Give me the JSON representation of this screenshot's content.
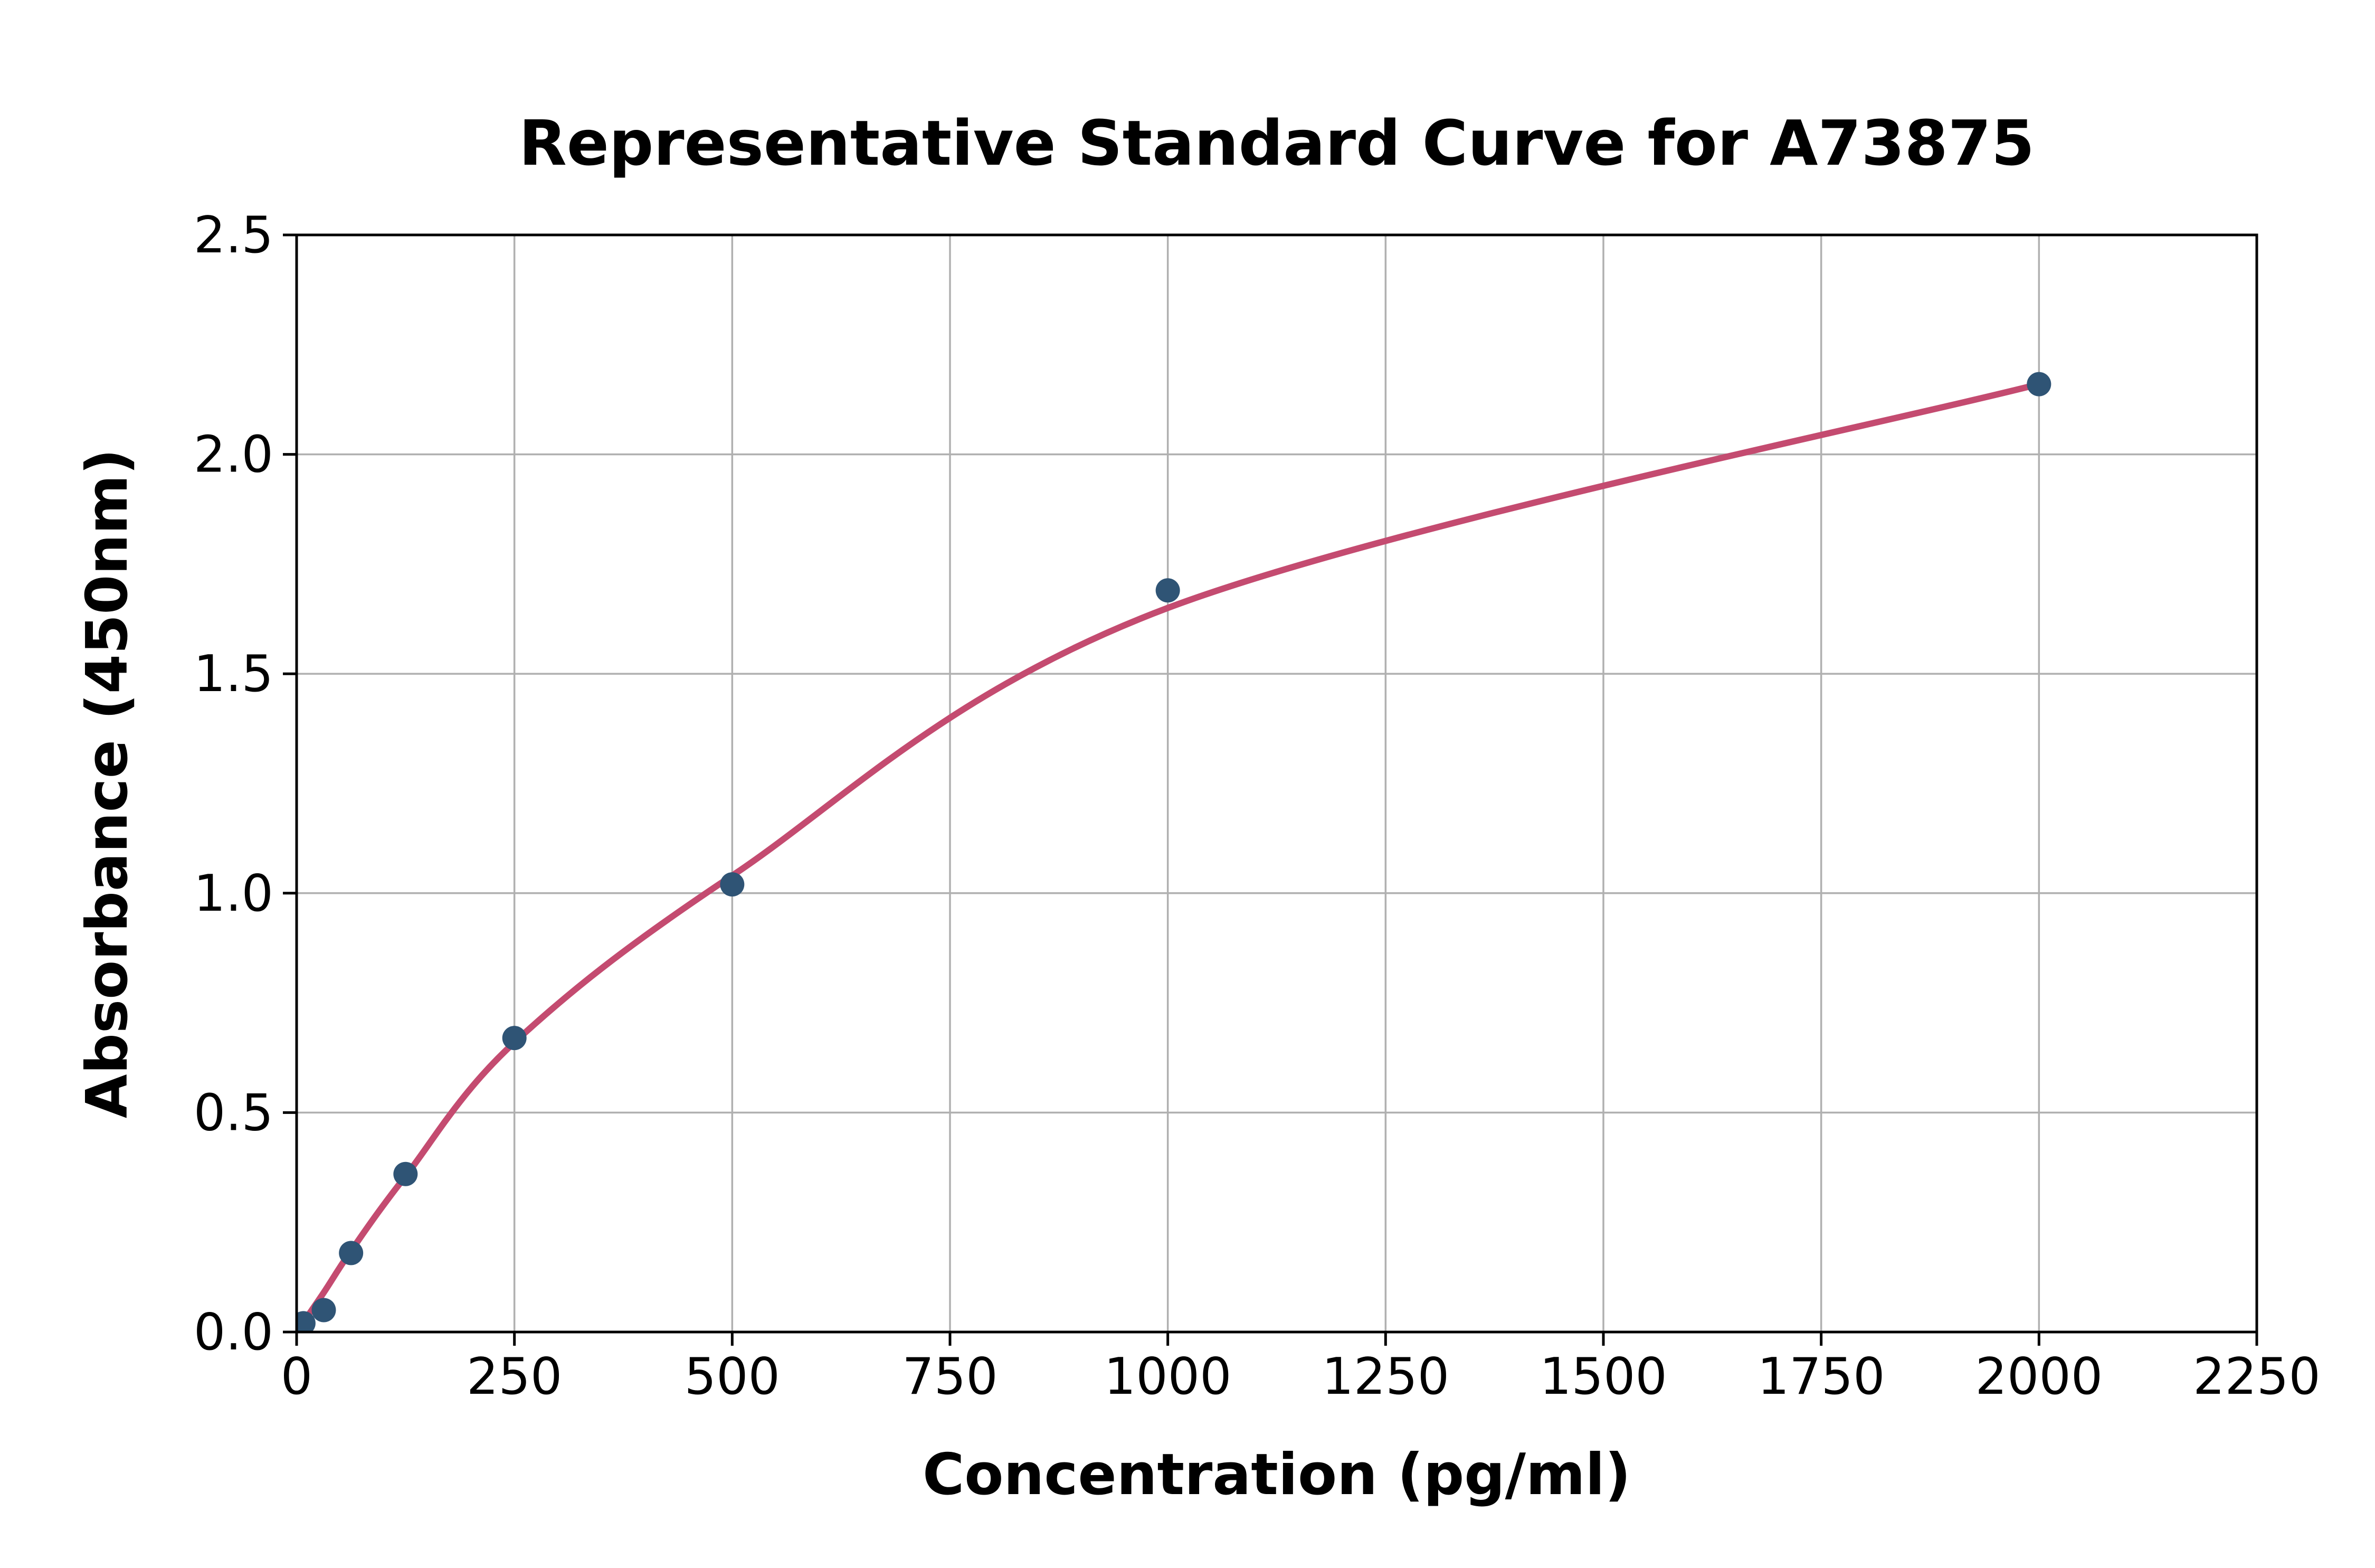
{
  "chart_data": {
    "type": "scatter",
    "title": "Representative Standard Curve for A73875",
    "xlabel": "Concentration (pg/ml)",
    "ylabel": "Absorbance (450nm)",
    "xlim": [
      0,
      2250
    ],
    "ylim": [
      0,
      2.5
    ],
    "grid": true,
    "legend": false,
    "x_ticks": {
      "values": [
        0,
        250,
        500,
        750,
        1000,
        1250,
        1500,
        1750,
        2000,
        2250
      ],
      "labels": [
        "0",
        "250",
        "500",
        "750",
        "1000",
        "1250",
        "1500",
        "1750",
        "2000",
        "2250"
      ]
    },
    "y_ticks": {
      "values": [
        0.0,
        0.5,
        1.0,
        1.5,
        2.0,
        2.5
      ],
      "labels": [
        "0.0",
        "0.5",
        "1.0",
        "1.5",
        "2.0",
        "2.5"
      ]
    },
    "series": [
      {
        "name": "standard-points",
        "type": "scatter",
        "color": "#2F5475",
        "x": [
          7.8,
          31.2,
          62.5,
          125,
          250,
          500,
          1000,
          2000
        ],
        "y": [
          0.02,
          0.05,
          0.18,
          0.36,
          0.67,
          1.02,
          1.69,
          2.16
        ]
      },
      {
        "name": "fit-curve",
        "type": "line",
        "color": "#C44B70",
        "x": [
          0,
          31.2,
          62.5,
          125,
          250,
          500,
          1000,
          2000
        ],
        "y": [
          0.0,
          0.09,
          0.185,
          0.355,
          0.66,
          1.04,
          1.65,
          2.16
        ]
      }
    ],
    "colors": {
      "points": "#2F5475",
      "curve": "#C44B70",
      "grid": "#B0B0B0",
      "axis": "#000000",
      "background": "#FFFFFF",
      "text": "#000000"
    }
  }
}
